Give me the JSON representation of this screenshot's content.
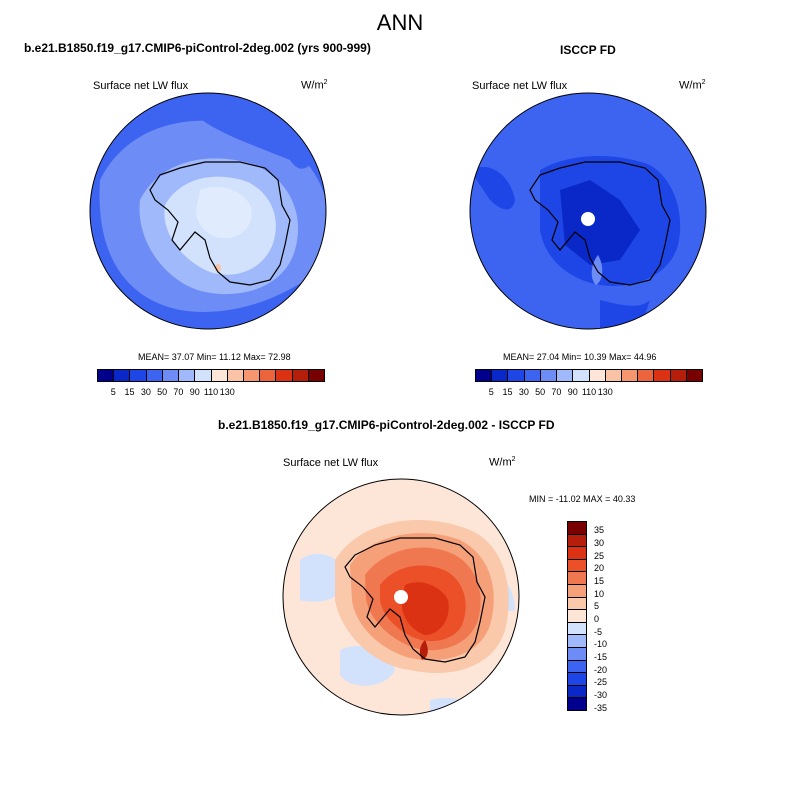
{
  "figure": {
    "title": "ANN",
    "panels": [
      {
        "name": "model",
        "title": "b.e21.B1850.f19_g17.CMIP6-piControl-2deg.002 (yrs 900-999)",
        "variable": "Surface net LW flux",
        "units": "W/m",
        "units_exp": "2",
        "stats_text": "MEAN=  37.07  Min=  11.12  Max=  72.98",
        "mean": 37.07,
        "min": 11.12,
        "max": 72.98
      },
      {
        "name": "obs",
        "title": "ISCCP FD",
        "variable": "Surface net LW flux",
        "units": "W/m",
        "units_exp": "2",
        "stats_text": "MEAN=  27.04  Min=  10.39  Max=  44.96",
        "mean": 27.04,
        "min": 10.39,
        "max": 44.96
      },
      {
        "name": "difference",
        "title": "b.e21.B1850.f19_g17.CMIP6-piControl-2deg.002 - ISCCP FD",
        "variable": "Surface net LW flux",
        "units": "W/m",
        "units_exp": "2",
        "stats_text": "MIN = -11.02 MAX =  40.33",
        "min": -11.02,
        "max": 40.33
      }
    ],
    "abs_colorbar": {
      "ticks": [
        "5",
        "15",
        "30",
        "50",
        "70",
        "90",
        "110",
        "130"
      ],
      "colors": [
        "#00008c",
        "#0a28c8",
        "#1e46e6",
        "#3c64f0",
        "#6e8cf5",
        "#a0b9fa",
        "#d2e1fc",
        "#fde6d8",
        "#fbc3a5",
        "#f5966e",
        "#ec643c",
        "#dc3214",
        "#b41e0a",
        "#780000"
      ]
    },
    "diff_colorbar": {
      "ticks": [
        "35",
        "30",
        "25",
        "20",
        "15",
        "10",
        "5",
        "0",
        "-5",
        "-10",
        "-15",
        "-20",
        "-25",
        "-30",
        "-35"
      ],
      "colors": [
        "#780000",
        "#b41e0a",
        "#dc3214",
        "#ec5028",
        "#f07850",
        "#f5a078",
        "#fac8aa",
        "#fde6d8",
        "#d2e1fc",
        "#a0b9fa",
        "#6e8cf5",
        "#3c64f0",
        "#1e46e6",
        "#0a28c8",
        "#00008c"
      ]
    }
  }
}
